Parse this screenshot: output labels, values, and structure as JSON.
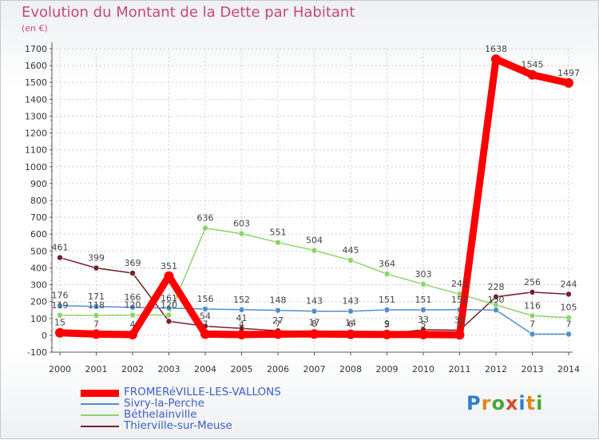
{
  "header": {
    "title": "Evolution du Montant de la Dette par Habitant",
    "subtitle": "(en €)"
  },
  "logo": {
    "text": "Proxiti",
    "colors": [
      "#2f7fd0",
      "#e2861a",
      "#46a83c",
      "#d64a2f",
      "#2f7fd0",
      "#e2861a",
      "#46a83c"
    ]
  },
  "chart_data": {
    "type": "line",
    "title": "Evolution du Montant de la Dette par Habitant",
    "subtitle": "(en €)",
    "xlabel": "",
    "ylabel": "",
    "x": [
      "2000",
      "2001",
      "2002",
      "2003",
      "2004",
      "2005",
      "2006",
      "2007",
      "2008",
      "2009",
      "2010",
      "2011",
      "2012",
      "2013",
      "2014"
    ],
    "ylim": [
      -100,
      1700
    ],
    "yticks": [
      -100,
      0,
      100,
      200,
      300,
      400,
      500,
      600,
      700,
      800,
      900,
      1000,
      1100,
      1200,
      1300,
      1400,
      1500,
      1600,
      1700
    ],
    "grid": true,
    "legend_position": "bottom-left",
    "series": [
      {
        "name": "FROMERéVILLE-LES-VALLONS",
        "color": "#ff0000",
        "values": [
          15,
          7,
          4,
          351,
          7,
          4,
          7,
          8,
          6,
          5,
          5,
          3,
          1638,
          1545,
          1497
        ],
        "labels": [
          "15",
          "7",
          "4",
          "351",
          "7",
          "4",
          "7",
          "8",
          "6",
          "5",
          "5",
          "3",
          "1638",
          "1545",
          "1497"
        ]
      },
      {
        "name": "Sivry-la-Perche",
        "color": "#4f8fcf",
        "values": [
          176,
          171,
          166,
          161,
          156,
          152,
          148,
          143,
          143,
          151,
          151,
          152,
          150,
          7,
          7
        ],
        "labels": [
          "176",
          "171",
          "166",
          "161",
          "156",
          "152",
          "148",
          "143",
          "143",
          "151",
          "151",
          "152",
          "150",
          "7",
          "7"
        ]
      },
      {
        "name": "Béthelainville",
        "color": "#8fd36a",
        "values": [
          119,
          118,
          120,
          120,
          636,
          603,
          551,
          504,
          445,
          364,
          303,
          245,
          180,
          116,
          105
        ],
        "labels": [
          "119",
          "118",
          "120",
          "120",
          "636",
          "603",
          "551",
          "504",
          "445",
          "364",
          "303",
          "245",
          "",
          "116",
          "105"
        ]
      },
      {
        "name": "Thierville-sur-Meuse",
        "color": "#7a1e2a",
        "values": [
          461,
          399,
          369,
          83,
          54,
          41,
          27,
          17,
          14,
          9,
          33,
          30,
          228,
          256,
          244
        ],
        "labels": [
          "461",
          "399",
          "369",
          "",
          "54",
          "41",
          "27",
          "17",
          "14",
          "9",
          "33",
          "30",
          "228",
          "256",
          "244"
        ]
      }
    ]
  }
}
